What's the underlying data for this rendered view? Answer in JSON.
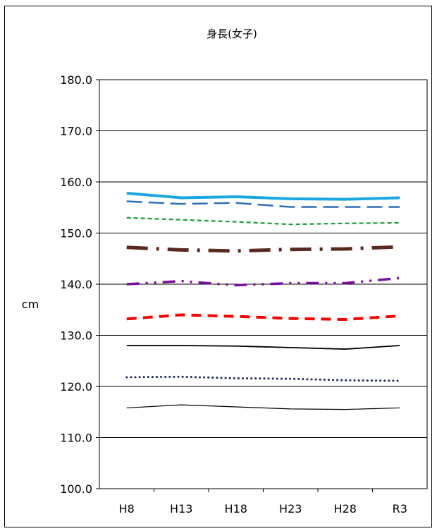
{
  "chart_data": {
    "type": "line",
    "title": "身長(女子)",
    "ylabel": "cm",
    "xlabel": "",
    "categories": [
      "H8",
      "H13",
      "H18",
      "H23",
      "H28",
      "R3"
    ],
    "ylim": [
      100.0,
      180.0
    ],
    "yticks": [
      "100.0",
      "110.0",
      "120.0",
      "130.0",
      "140.0",
      "150.0",
      "160.0",
      "170.0",
      "180.0"
    ],
    "grid": "horizontal",
    "legend": "none",
    "series": [
      {
        "values": [
          115.8,
          116.4,
          116.0,
          115.6,
          115.5,
          115.8
        ],
        "color": "#000000",
        "style": "thin-solid"
      },
      {
        "values": [
          121.8,
          121.9,
          121.6,
          121.5,
          121.2,
          121.1
        ],
        "color": "#1f2a5a",
        "style": "dotted"
      },
      {
        "values": [
          128.0,
          128.0,
          127.9,
          127.6,
          127.3,
          128.0
        ],
        "color": "#000000",
        "style": "solid"
      },
      {
        "values": [
          133.2,
          134.0,
          133.7,
          133.3,
          133.1,
          133.8
        ],
        "color": "#ff0000",
        "style": "dashed"
      },
      {
        "values": [
          140.0,
          140.6,
          139.8,
          140.2,
          140.2,
          141.2
        ],
        "color": "#7b0f9b",
        "style": "dash-dot-dot"
      },
      {
        "values": [
          147.2,
          146.7,
          146.5,
          146.8,
          146.9,
          147.3
        ],
        "color": "#5a2a1e",
        "style": "dash-dot"
      },
      {
        "values": [
          153.0,
          152.6,
          152.2,
          151.7,
          151.9,
          152.0
        ],
        "color": "#1a9e3a",
        "style": "short-dash"
      },
      {
        "values": [
          156.2,
          155.7,
          155.9,
          155.1,
          155.1,
          155.1
        ],
        "color": "#2b6fb8",
        "style": "long-dash"
      },
      {
        "values": [
          157.8,
          156.9,
          157.1,
          156.7,
          156.6,
          156.9
        ],
        "color": "#1ba7e0",
        "style": "thick-solid"
      }
    ]
  }
}
